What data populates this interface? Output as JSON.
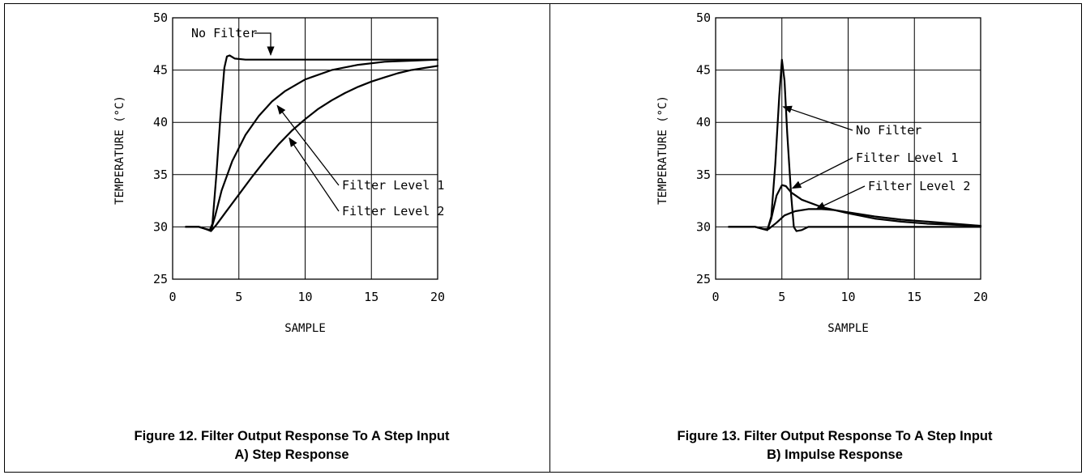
{
  "chart_data": [
    {
      "type": "line",
      "caption_line1": "Figure 12. Filter Output Response To A Step Input",
      "caption_line2": "A) Step Response",
      "xlabel": "SAMPLE",
      "ylabel": "TEMPERATURE (°C)",
      "xlim": [
        0,
        20
      ],
      "ylim": [
        25,
        50
      ],
      "xticks": [
        0,
        5,
        10,
        15,
        20
      ],
      "yticks": [
        25,
        30,
        35,
        40,
        45,
        50
      ],
      "grid": true,
      "series": [
        {
          "name": "No Filter",
          "points": [
            [
              1,
              30
            ],
            [
              2,
              30
            ],
            [
              2.5,
              29.8
            ],
            [
              2.8,
              29.7
            ],
            [
              3,
              30.3
            ],
            [
              3.3,
              35
            ],
            [
              3.6,
              40.5
            ],
            [
              3.9,
              45.2
            ],
            [
              4.1,
              46.3
            ],
            [
              4.3,
              46.4
            ],
            [
              4.7,
              46.1
            ],
            [
              5.5,
              46
            ],
            [
              8,
              46
            ],
            [
              20,
              46
            ]
          ]
        },
        {
          "name": "Filter Level 1",
          "points": [
            [
              1,
              30
            ],
            [
              2,
              30
            ],
            [
              2.5,
              29.8
            ],
            [
              2.9,
              29.7
            ],
            [
              3.2,
              31
            ],
            [
              3.7,
              33.5
            ],
            [
              4.5,
              36.3
            ],
            [
              5.5,
              38.8
            ],
            [
              6.5,
              40.6
            ],
            [
              7.5,
              42
            ],
            [
              8.5,
              43
            ],
            [
              10,
              44.1
            ],
            [
              12,
              45
            ],
            [
              14,
              45.5
            ],
            [
              16,
              45.8
            ],
            [
              18,
              45.9
            ],
            [
              20,
              46
            ]
          ]
        },
        {
          "name": "Filter Level 2",
          "points": [
            [
              1,
              30
            ],
            [
              2,
              30
            ],
            [
              2.5,
              29.8
            ],
            [
              2.9,
              29.6
            ],
            [
              3.3,
              30.2
            ],
            [
              4,
              31.4
            ],
            [
              5,
              33.1
            ],
            [
              6,
              34.8
            ],
            [
              7,
              36.4
            ],
            [
              8,
              37.9
            ],
            [
              9,
              39.2
            ],
            [
              10,
              40.3
            ],
            [
              11,
              41.3
            ],
            [
              12,
              42.1
            ],
            [
              13,
              42.8
            ],
            [
              14,
              43.4
            ],
            [
              15,
              43.9
            ],
            [
              16,
              44.3
            ],
            [
              17,
              44.7
            ],
            [
              18,
              45
            ],
            [
              19,
              45.2
            ],
            [
              20,
              45.4
            ]
          ]
        }
      ],
      "annotations": [
        {
          "text": "No Filter",
          "target": [
            5.2,
            46.3
          ]
        },
        {
          "text": "Filter Level 1",
          "target": [
            7.9,
            41.6
          ]
        },
        {
          "text": "Filter Level 2",
          "target": [
            8.8,
            38.5
          ]
        }
      ]
    },
    {
      "type": "line",
      "caption_line1": "Figure 13. Filter Output Response To A Step Input",
      "caption_line2": "B) Impulse Response",
      "xlabel": "SAMPLE",
      "ylabel": "TEMPERATURE (°C)",
      "xlim": [
        0,
        20
      ],
      "ylim": [
        25,
        50
      ],
      "xticks": [
        0,
        5,
        10,
        15,
        20
      ],
      "yticks": [
        25,
        30,
        35,
        40,
        45,
        50
      ],
      "grid": true,
      "series": [
        {
          "name": "No Filter",
          "points": [
            [
              1,
              30
            ],
            [
              3,
              30
            ],
            [
              3.6,
              29.8
            ],
            [
              3.9,
              29.7
            ],
            [
              4.2,
              31
            ],
            [
              4.5,
              36
            ],
            [
              4.8,
              42.5
            ],
            [
              5,
              46
            ],
            [
              5.2,
              44
            ],
            [
              5.4,
              39
            ],
            [
              5.7,
              33
            ],
            [
              5.9,
              30
            ],
            [
              6.1,
              29.6
            ],
            [
              6.5,
              29.7
            ],
            [
              7,
              30
            ],
            [
              20,
              30
            ]
          ]
        },
        {
          "name": "Filter Level 1",
          "points": [
            [
              1,
              30
            ],
            [
              3,
              30
            ],
            [
              3.6,
              29.8
            ],
            [
              3.9,
              29.7
            ],
            [
              4.2,
              30.8
            ],
            [
              4.6,
              33
            ],
            [
              5,
              34
            ],
            [
              5.3,
              33.9
            ],
            [
              5.7,
              33.3
            ],
            [
              6.5,
              32.6
            ],
            [
              8,
              31.9
            ],
            [
              10,
              31.3
            ],
            [
              12,
              30.8
            ],
            [
              14,
              30.5
            ],
            [
              16,
              30.3
            ],
            [
              18,
              30.2
            ],
            [
              20,
              30.1
            ]
          ]
        },
        {
          "name": "Filter Level 2",
          "points": [
            [
              1,
              30
            ],
            [
              3,
              30
            ],
            [
              3.6,
              29.8
            ],
            [
              4,
              29.8
            ],
            [
              4.6,
              30.4
            ],
            [
              5.2,
              31.1
            ],
            [
              6,
              31.5
            ],
            [
              7,
              31.7
            ],
            [
              8,
              31.7
            ],
            [
              9,
              31.6
            ],
            [
              10,
              31.4
            ],
            [
              12,
              31
            ],
            [
              14,
              30.7
            ],
            [
              16,
              30.5
            ],
            [
              18,
              30.3
            ],
            [
              20,
              30.1
            ]
          ]
        }
      ],
      "annotations": [
        {
          "text": "No Filter",
          "target": [
            5.1,
            41.5
          ]
        },
        {
          "text": "Filter Level 1",
          "target": [
            5.8,
            33.7
          ]
        },
        {
          "text": "Filter Level 2",
          "target": [
            7.6,
            31.7
          ]
        }
      ]
    }
  ]
}
